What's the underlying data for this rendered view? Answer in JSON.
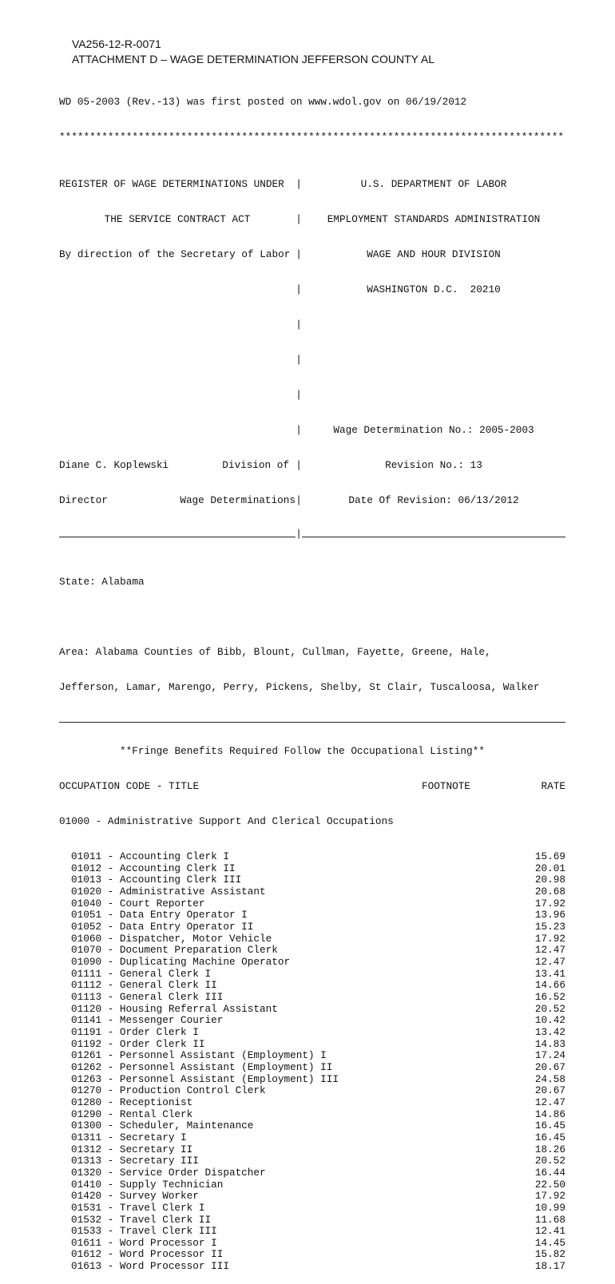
{
  "header": {
    "id": "VA256-12-R-0071",
    "title": "ATTACHMENT D – WAGE DETERMINATION JEFFERSON COUNTY AL"
  },
  "posted": "WD 05-2003 (Rev.-13) was first posted on www.wdol.gov on 06/19/2012",
  "stars": "***********************************************************************************",
  "register": {
    "left": [
      "REGISTER OF WAGE DETERMINATIONS UNDER",
      "THE SERVICE CONTRACT ACT",
      "By direction of the Secretary of Labor"
    ],
    "right": [
      "U.S. DEPARTMENT OF LABOR",
      "EMPLOYMENT STANDARDS ADMINISTRATION",
      "WAGE AND HOUR DIVISION",
      "WASHINGTON D.C.  20210"
    ],
    "signer_name": "Diane C. Koplewski",
    "signer_title": "Director",
    "division_1": "Division of",
    "division_2": "Wage Determinations",
    "wd_no": "Wage Determination No.: 2005-2003",
    "revision_no": "Revision No.: 13",
    "revision_date": "Date Of Revision: 06/13/2012"
  },
  "state": "State: Alabama",
  "area": [
    "Area: Alabama Counties of Bibb, Blount, Cullman, Fayette, Greene, Hale,",
    "Jefferson, Lamar, Marengo, Perry, Pickens, Shelby, St Clair, Tuscaloosa, Walker"
  ],
  "fringe_note": "**Fringe Benefits Required Follow the Occupational Listing**",
  "columns": {
    "title": "OCCUPATION CODE - TITLE",
    "footnote": "FOOTNOTE",
    "rate": "RATE"
  },
  "group": "01000 - Administrative Support And Clerical Occupations",
  "occupations": [
    {
      "name": "01011 - Accounting Clerk I",
      "rate": "15.69"
    },
    {
      "name": "01012 - Accounting Clerk II",
      "rate": "20.01"
    },
    {
      "name": "01013 - Accounting Clerk III",
      "rate": "20.98"
    },
    {
      "name": "01020 - Administrative Assistant",
      "rate": "20.68"
    },
    {
      "name": "01040 - Court Reporter",
      "rate": "17.92"
    },
    {
      "name": "01051 - Data Entry Operator I",
      "rate": "13.96"
    },
    {
      "name": "01052 - Data Entry Operator II",
      "rate": "15.23"
    },
    {
      "name": "01060 - Dispatcher, Motor Vehicle",
      "rate": "17.92"
    },
    {
      "name": "01070 - Document Preparation Clerk",
      "rate": "12.47"
    },
    {
      "name": "01090 - Duplicating Machine Operator",
      "rate": "12.47"
    },
    {
      "name": "01111 - General Clerk I",
      "rate": "13.41"
    },
    {
      "name": "01112 - General Clerk II",
      "rate": "14.66"
    },
    {
      "name": "01113 - General Clerk III",
      "rate": "16.52"
    },
    {
      "name": "01120 - Housing Referral Assistant",
      "rate": "20.52"
    },
    {
      "name": "01141 - Messenger Courier",
      "rate": "10.42"
    },
    {
      "name": "01191 - Order Clerk I",
      "rate": "13.42"
    },
    {
      "name": "01192 - Order Clerk II",
      "rate": "14.83"
    },
    {
      "name": "01261 - Personnel Assistant (Employment) I",
      "rate": "17.24"
    },
    {
      "name": "01262 - Personnel Assistant (Employment) II",
      "rate": "20.67"
    },
    {
      "name": "01263 - Personnel Assistant (Employment) III",
      "rate": "24.58"
    },
    {
      "name": "01270 - Production Control Clerk",
      "rate": "20.67"
    },
    {
      "name": "01280 - Receptionist",
      "rate": "12.47"
    },
    {
      "name": "01290 - Rental Clerk",
      "rate": "14.86"
    },
    {
      "name": "01300 - Scheduler, Maintenance",
      "rate": "16.45"
    },
    {
      "name": "01311 - Secretary I",
      "rate": "16.45"
    },
    {
      "name": "01312 - Secretary II",
      "rate": "18.26"
    },
    {
      "name": "01313 - Secretary III",
      "rate": "20.52"
    },
    {
      "name": "01320 - Service Order Dispatcher",
      "rate": "16.44"
    },
    {
      "name": "01410 - Supply Technician",
      "rate": "22.50"
    },
    {
      "name": "01420 - Survey Worker",
      "rate": "17.92"
    },
    {
      "name": "01531 - Travel Clerk I",
      "rate": "10.99"
    },
    {
      "name": "01532 - Travel Clerk II",
      "rate": "11.68"
    },
    {
      "name": "01533 - Travel Clerk III",
      "rate": "12.41"
    },
    {
      "name": "01611 - Word Processor I",
      "rate": "14.45"
    },
    {
      "name": "01612 - Word Processor II",
      "rate": "15.82"
    },
    {
      "name": "01613 - Word Processor III",
      "rate": "18.17"
    }
  ]
}
